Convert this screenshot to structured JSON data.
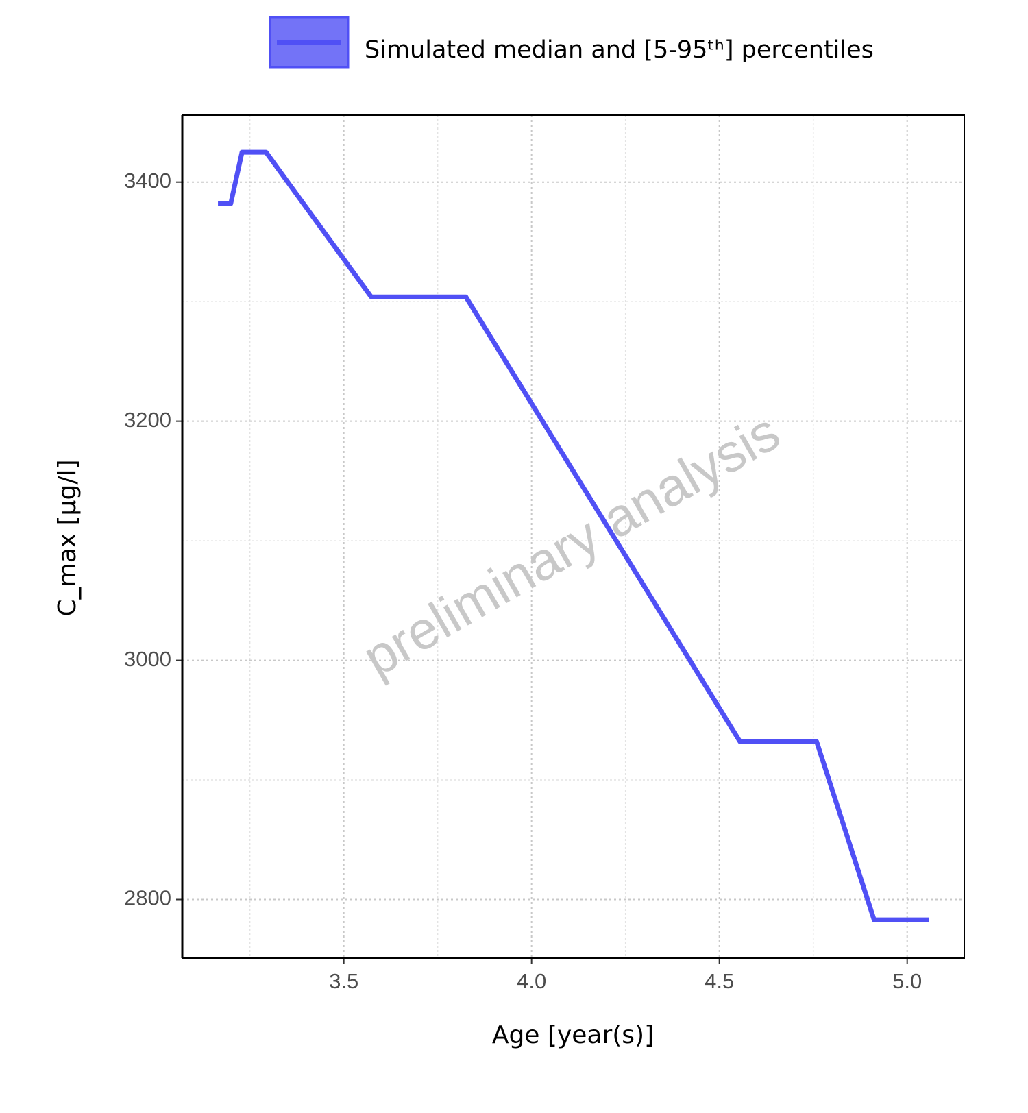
{
  "chart_data": {
    "type": "line",
    "x_label": "Age [year(s)]",
    "y_label": "C_max [µg/l]",
    "watermark": "preliminary analysis",
    "legend": "top",
    "grid": true,
    "xlim": [
      3.07,
      5.152
    ],
    "ylim": [
      2751,
      3456
    ],
    "xticks": [
      {
        "value": 3.5,
        "label": "3.5"
      },
      {
        "value": 4,
        "label": "4.0"
      },
      {
        "value": 4.5,
        "label": "4.5"
      },
      {
        "value": 5,
        "label": "5.0"
      }
    ],
    "yticks": [
      2800,
      3000,
      3200,
      3400
    ],
    "x_minor_ticks": [
      3.25,
      3.75,
      4.25,
      4.75
    ],
    "y_minor_ticks": [
      2900,
      3100,
      3300
    ],
    "x": [
      3.165,
      3.199,
      3.229,
      3.293,
      3.573,
      3.825,
      4.555,
      4.759,
      4.912,
      5.058
    ],
    "series": [
      {
        "name": "Simulated median and [5-95ᵗʰ] percentiles",
        "color": "#5050f5",
        "values": [
          3382,
          3382,
          3425,
          3425,
          3304,
          3304,
          2932,
          2932,
          2783,
          2783
        ]
      }
    ]
  }
}
